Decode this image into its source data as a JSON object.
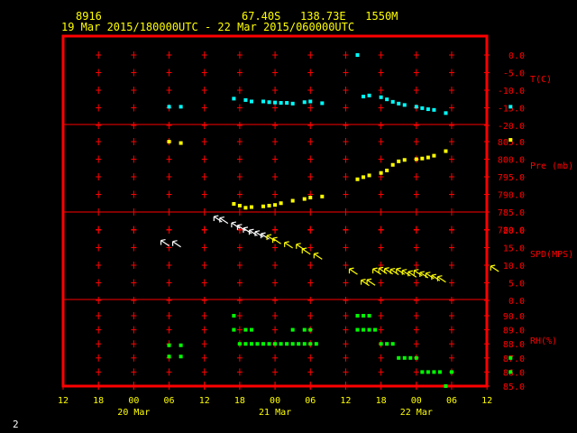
{
  "header": {
    "station": "8916",
    "location": "67.40S   138.73E   1550M",
    "period": "19 Mar 2015/180000UTC - 22 Mar 2015/060000UTC"
  },
  "page_number": "2",
  "colors": {
    "frame": "#ff0000",
    "cross": "#ff0000",
    "axis_text": "#ffff00",
    "panel_text": "#ff0000",
    "temperature": "#00ffff",
    "pressure": "#ffff00",
    "wind_arrows_day1": "#ffffff",
    "wind_arrows_day2": "#ffff00",
    "rh": "#00ff00"
  },
  "chart_data": [
    {
      "type": "scatter",
      "panel": "temperature",
      "ylabel": "T(C)",
      "ylim": [
        -20,
        2.5
      ],
      "yticks": [
        "0.0",
        "-5.0",
        "-10.0",
        "-15.0",
        "-20.0"
      ],
      "x": [
        18,
        20,
        29,
        31,
        32,
        34,
        35,
        36,
        37,
        38,
        39,
        41,
        42,
        44,
        50,
        51,
        52,
        54,
        55,
        56,
        57,
        58,
        60,
        61,
        62,
        63,
        65,
        76
      ],
      "values": [
        -14.7,
        -14.7,
        -12.4,
        -12.8,
        -13.2,
        -13.2,
        -13.4,
        -13.5,
        -13.6,
        -13.6,
        -13.8,
        -13.4,
        -13.2,
        -13.7,
        0.0,
        -11.8,
        -11.5,
        -12.0,
        -12.6,
        -13.3,
        -13.8,
        -14.2,
        -14.7,
        -15.1,
        -15.4,
        -15.6,
        -16.5,
        -14.7
      ]
    },
    {
      "type": "scatter",
      "panel": "pressure",
      "ylabel": "Pre (mb)",
      "ylim": [
        780,
        807.5
      ],
      "yticks": [
        "805.0",
        "800.0",
        "795.0",
        "790.0",
        "785.0",
        "780.0"
      ],
      "x": [
        18,
        20,
        29,
        30,
        31,
        32,
        34,
        35,
        36,
        37,
        39,
        41,
        42,
        44,
        50,
        51,
        52,
        54,
        55,
        56,
        57,
        58,
        60,
        61,
        62,
        63,
        65,
        76
      ],
      "values": [
        805.0,
        804.6,
        787.3,
        786.8,
        786.2,
        786.4,
        786.6,
        786.8,
        787.0,
        787.5,
        788.2,
        788.7,
        789.1,
        789.4,
        794.3,
        794.9,
        795.4,
        796.1,
        796.8,
        798.4,
        799.4,
        799.8,
        800.0,
        800.2,
        800.5,
        801.0,
        802.3,
        805.5
      ]
    },
    {
      "type": "scatter",
      "panel": "wind",
      "ylabel": "SPD(MPS)",
      "ylim": [
        0,
        25
      ],
      "yticks": [
        "20.0",
        "15.0",
        "10.0",
        "5.0",
        "0.0"
      ],
      "x": [
        18,
        20,
        27,
        28,
        30,
        31,
        32,
        33,
        34,
        35,
        36,
        37,
        39,
        41,
        42,
        44,
        50,
        52,
        53,
        54,
        55,
        56,
        57,
        58,
        59,
        60,
        61,
        62,
        63,
        64,
        65,
        74
      ],
      "values": [
        15.5,
        15.2,
        22.3,
        21.9,
        20.5,
        19.8,
        19.0,
        18.4,
        18.0,
        17.4,
        16.9,
        16.1,
        14.9,
        14.4,
        13.1,
        11.7,
        7.4,
        4.2,
        4.3,
        7.4,
        7.6,
        7.5,
        7.3,
        7.4,
        7.0,
        6.6,
        7.0,
        6.4,
        6.2,
        5.6,
        5.2,
        8.2
      ]
    },
    {
      "type": "scatter",
      "panel": "rh",
      "ylabel": "RH(%)",
      "ylim": [
        85,
        90.5
      ],
      "yticks": [
        "90.0",
        "89.0",
        "88.0",
        "87.0",
        "86.0",
        "85.0"
      ],
      "x": [
        18,
        18,
        20,
        20,
        29,
        29,
        30,
        31,
        31,
        32,
        32,
        33,
        34,
        35,
        36,
        37,
        38,
        39,
        39,
        40,
        41,
        41,
        42,
        42,
        43,
        50,
        50,
        51,
        51,
        52,
        52,
        53,
        54,
        55,
        56,
        57,
        58,
        59,
        60,
        61,
        62,
        63,
        64,
        65,
        66,
        76,
        76
      ],
      "values": [
        87.9,
        87.1,
        87.9,
        87.1,
        90.0,
        89.0,
        88.0,
        89.0,
        88.0,
        89.0,
        88.0,
        88.0,
        88.0,
        88.0,
        88.0,
        88.0,
        88.0,
        89.0,
        88.0,
        88.0,
        89.0,
        88.0,
        89.0,
        88.0,
        88.0,
        90.0,
        89.0,
        90.0,
        89.0,
        90.0,
        89.0,
        89.0,
        88.0,
        88.0,
        88.0,
        87.0,
        87.0,
        87.0,
        87.0,
        86.0,
        86.0,
        86.0,
        86.0,
        85.0,
        86.0,
        87.0,
        86.0
      ]
    }
  ],
  "x_axis": {
    "ticks": [
      {
        "x": 0,
        "label": "12"
      },
      {
        "x": 6,
        "label": "18"
      },
      {
        "x": 12,
        "label": "00"
      },
      {
        "x": 18,
        "label": "06"
      },
      {
        "x": 24,
        "label": "12"
      },
      {
        "x": 30,
        "label": "18"
      },
      {
        "x": 36,
        "label": "00"
      },
      {
        "x": 42,
        "label": "06"
      },
      {
        "x": 48,
        "label": "12"
      },
      {
        "x": 54,
        "label": "18"
      },
      {
        "x": 60,
        "label": "00"
      },
      {
        "x": 66,
        "label": "06"
      },
      {
        "x": 72,
        "label": "12"
      }
    ],
    "days": [
      {
        "x": 12,
        "label": "20 Mar"
      },
      {
        "x": 36,
        "label": "21 Mar"
      },
      {
        "x": 60,
        "label": "22 Mar"
      }
    ]
  }
}
